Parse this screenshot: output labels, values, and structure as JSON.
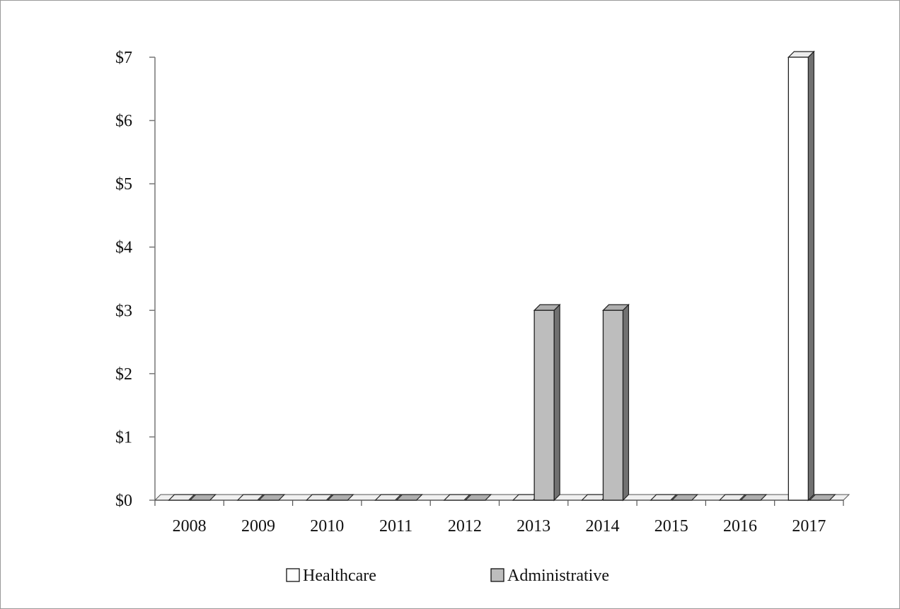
{
  "chart_data": {
    "type": "bar",
    "style": "3d-clustered-column",
    "categories": [
      "2008",
      "2009",
      "2010",
      "2011",
      "2012",
      "2013",
      "2014",
      "2015",
      "2016",
      "2017"
    ],
    "series": [
      {
        "name": "Healthcare",
        "values": [
          0,
          0,
          0,
          0,
          0,
          0,
          0,
          0,
          0,
          7
        ],
        "color": "#ffffff"
      },
      {
        "name": "Administrative",
        "values": [
          0,
          0,
          0,
          0,
          0,
          3,
          3,
          0,
          0,
          0
        ],
        "color": "#bdbdbd"
      }
    ],
    "y_ticks": [
      "$0",
      "$1",
      "$2",
      "$3",
      "$4",
      "$5",
      "$6",
      "$7"
    ],
    "ylim": [
      0,
      7
    ],
    "grid": false,
    "legend_position": "bottom"
  }
}
